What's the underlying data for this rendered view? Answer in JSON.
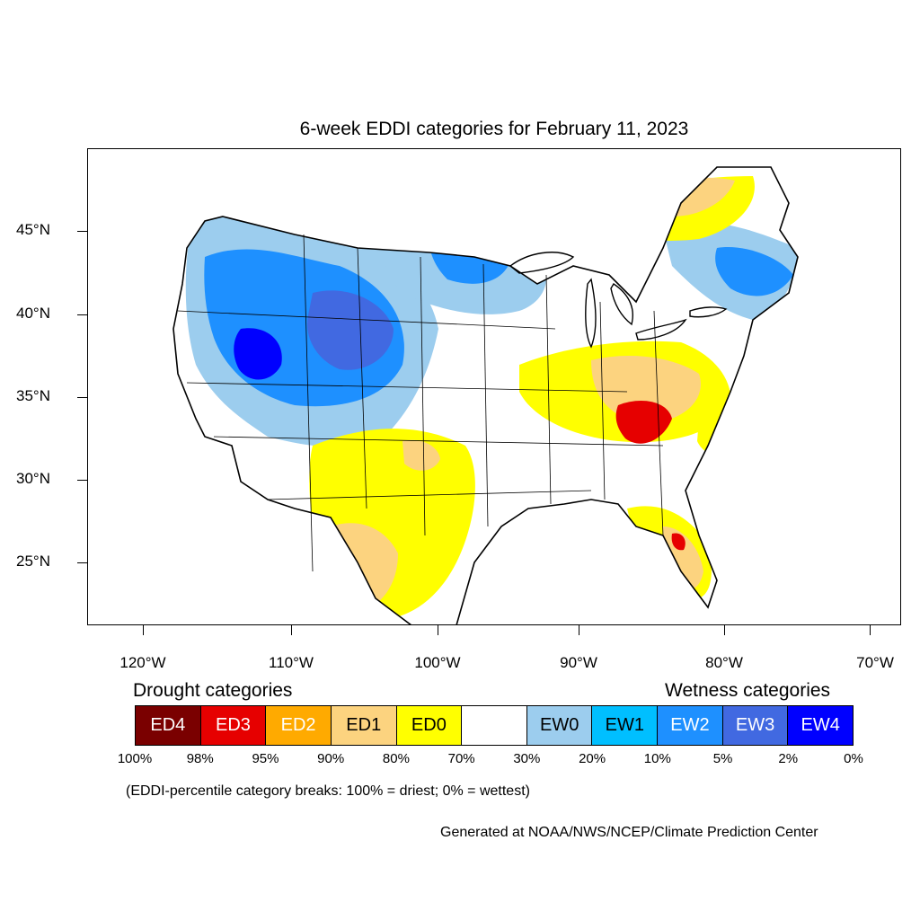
{
  "title": "6-week EDDI categories for February 11, 2023",
  "lat_labels": [
    "45°N",
    "40°N",
    "35°N",
    "30°N",
    "25°N"
  ],
  "lon_labels": [
    "120°W",
    "110°W",
    "100°W",
    "90°W",
    "80°W",
    "70°W"
  ],
  "legend": {
    "drought_heading": "Drought categories",
    "wetness_heading": "Wetness categories",
    "categories": [
      {
        "label": "ED4",
        "color": "#7a0000",
        "text_color": "#ffffff"
      },
      {
        "label": "ED3",
        "color": "#e60000",
        "text_color": "#ffffff"
      },
      {
        "label": "ED2",
        "color": "#ffaa00",
        "text_color": "#ffffff"
      },
      {
        "label": "ED1",
        "color": "#fcd37f",
        "text_color": "#000000"
      },
      {
        "label": "ED0",
        "color": "#ffff00",
        "text_color": "#000000"
      },
      {
        "label": "",
        "color": "#ffffff",
        "text_color": "#000000"
      },
      {
        "label": "EW0",
        "color": "#9ccdee",
        "text_color": "#000000"
      },
      {
        "label": "EW1",
        "color": "#00bfff",
        "text_color": "#000000"
      },
      {
        "label": "EW2",
        "color": "#1e90ff",
        "text_color": "#ffffff"
      },
      {
        "label": "EW3",
        "color": "#4169e1",
        "text_color": "#ffffff"
      },
      {
        "label": "EW4",
        "color": "#0000ff",
        "text_color": "#ffffff"
      }
    ],
    "percentiles": [
      "100%",
      "98%",
      "95%",
      "90%",
      "80%",
      "70%",
      "30%",
      "20%",
      "10%",
      "5%",
      "2%",
      "0%"
    ]
  },
  "breaks_note": "(EDDI-percentile category breaks: 100% = driest; 0% = wettest)",
  "generated_by": "Generated at NOAA/NWS/NCEP/Climate Prediction Center"
}
